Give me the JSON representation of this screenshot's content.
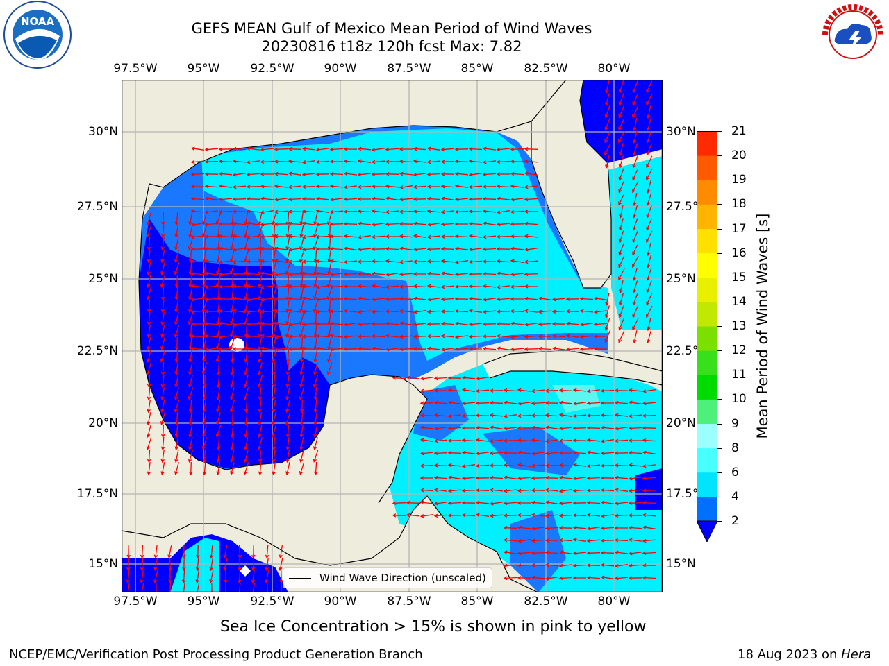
{
  "title_line1": "GEFS MEAN Gulf of Mexico Mean Period of Wind Waves",
  "title_line2": "20230816 t18z 120h fcst   Max: 7.82",
  "lon_ticks": [
    "97.5°W",
    "95°W",
    "92.5°W",
    "90°W",
    "87.5°W",
    "85°W",
    "82.5°W",
    "80°W"
  ],
  "lat_ticks": [
    "30°N",
    "27.5°N",
    "25°N",
    "22.5°N",
    "20°N",
    "17.5°N",
    "15°N"
  ],
  "colorbar": {
    "label": "Mean Period of Wind Waves [s]",
    "ticks": [
      "2",
      "4",
      "6",
      "8",
      "9",
      "10",
      "11",
      "12",
      "13",
      "14",
      "15",
      "16",
      "17",
      "18",
      "19",
      "20",
      "21"
    ],
    "colors": [
      "#0070ff",
      "#00e4ff",
      "#48ffff",
      "#9cffff",
      "#4cf07a",
      "#00dc00",
      "#37e01a",
      "#7be000",
      "#c0e800",
      "#e8f000",
      "#ffff00",
      "#ffe000",
      "#ffb400",
      "#ff8c00",
      "#ff5a00",
      "#ff2a00",
      "#ff0000"
    ],
    "under_color": "#0000ff"
  },
  "legend_text": "Wind Wave Direction (unscaled)",
  "ice_note": "Sea Ice Concentration > 15% is shown in pink to yellow",
  "footer_left": "NCEP/EMC/Verification Post Processing Product Generation Branch",
  "footer_right_prefix": "18 Aug 2023 on ",
  "footer_right_host": "Hera",
  "logos": {
    "left": "NOAA",
    "right": "NATIONAL WEATHER SERVICE"
  },
  "colors": {
    "land": "#eeecdc",
    "arrow": "#ff0000",
    "grid": "#b4b4b4",
    "dark_blue": "#0000ff",
    "mid_blue": "#1a78ff",
    "cyan": "#00f0ff",
    "light_cyan": "#5cf6f0"
  }
}
